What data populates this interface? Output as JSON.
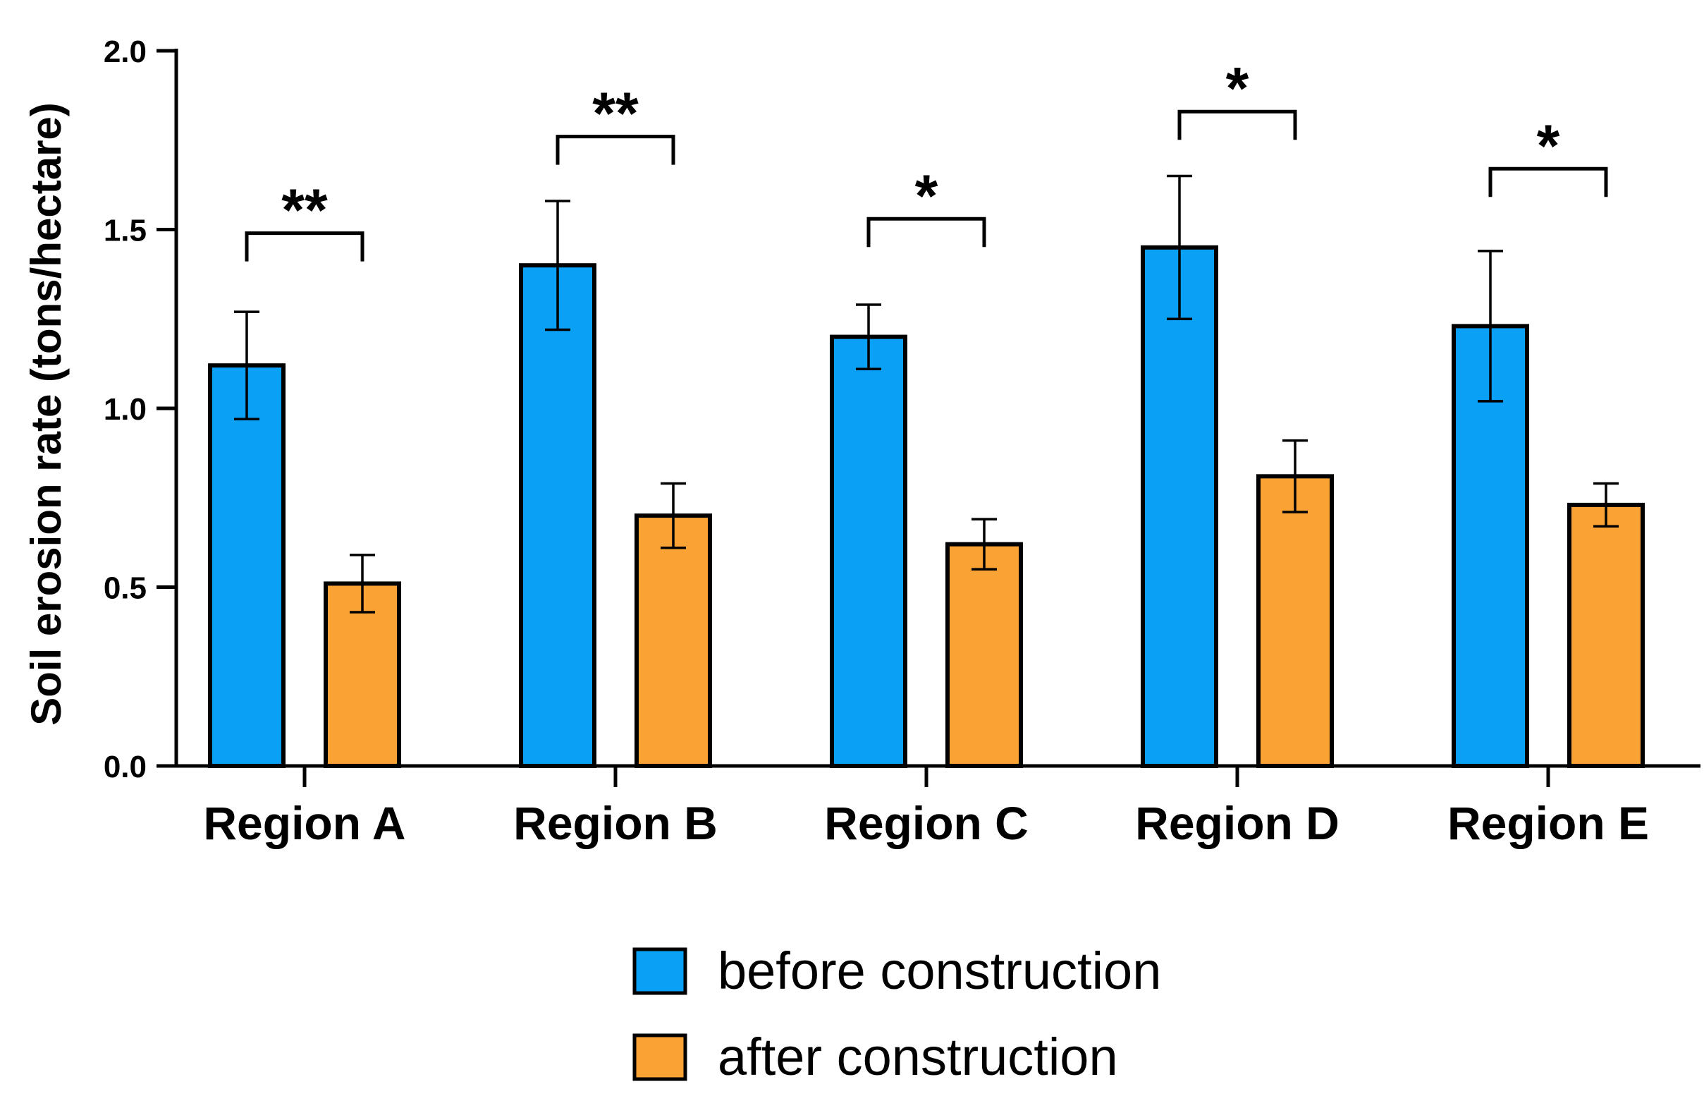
{
  "chart_data": {
    "type": "bar",
    "title": "",
    "xlabel": "",
    "ylabel": "Soil erosion rate (tons/hectare)",
    "ylim": [
      0,
      2.0
    ],
    "yticks": [
      0.0,
      0.5,
      1.0,
      1.5,
      2.0
    ],
    "ytick_labels": [
      "0.0",
      "0.5",
      "1.0",
      "1.5",
      "2.0"
    ],
    "categories": [
      "Region A",
      "Region B",
      "Region C",
      "Region D",
      "Region E"
    ],
    "series": [
      {
        "name": "before construction",
        "color": "#0aa0f5",
        "values": [
          1.12,
          1.4,
          1.2,
          1.45,
          1.23
        ],
        "errors": [
          0.15,
          0.18,
          0.09,
          0.2,
          0.21
        ]
      },
      {
        "name": "after construction",
        "color": "#fba234",
        "values": [
          0.51,
          0.7,
          0.62,
          0.81,
          0.73
        ],
        "errors": [
          0.08,
          0.09,
          0.07,
          0.1,
          0.06
        ]
      }
    ],
    "significance": [
      {
        "category": "Region A",
        "label": "**",
        "bracket_y": 1.49
      },
      {
        "category": "Region B",
        "label": "**",
        "bracket_y": 1.76
      },
      {
        "category": "Region C",
        "label": "*",
        "bracket_y": 1.53
      },
      {
        "category": "Region D",
        "label": "*",
        "bracket_y": 1.83
      },
      {
        "category": "Region E",
        "label": "*",
        "bracket_y": 1.67
      }
    ],
    "legend": {
      "position": "bottom-center",
      "entries": [
        "before construction",
        "after construction"
      ]
    },
    "grid": false
  }
}
